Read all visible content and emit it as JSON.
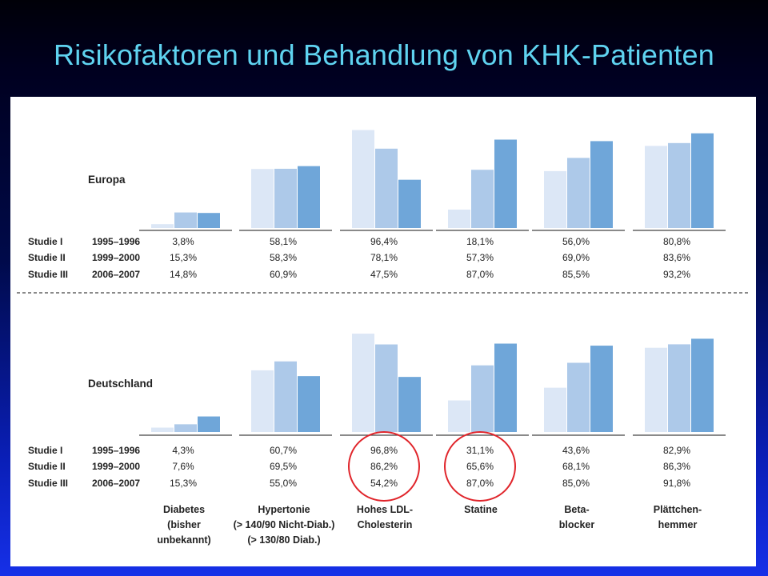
{
  "title": "Risikofaktoren und Behandlung von KHK-Patienten",
  "colors": {
    "study1": "#dce7f6",
    "study2": "#adc9e9",
    "study3": "#6fa6d9",
    "highlight": "#e0252b",
    "title": "#5fd3f0"
  },
  "chart_data": {
    "type": "bar",
    "categories": [
      [
        "Diabetes",
        "(bisher",
        "unbekannt)"
      ],
      [
        "Hypertonie",
        "(> 140/90 Nicht-Diab.)",
        "(> 130/80 Diab.)"
      ],
      [
        "Hohes LDL-",
        "Cholesterin"
      ],
      [
        "Statine"
      ],
      [
        "Beta-",
        "blocker"
      ],
      [
        "Plättchen-",
        "hemmer"
      ]
    ],
    "studies": [
      {
        "name": "Studie I",
        "years": "1995–1996"
      },
      {
        "name": "Studie II",
        "years": "1999–2000"
      },
      {
        "name": "Studie III",
        "years": "2006–2007"
      }
    ],
    "panels": [
      {
        "region": "Europa",
        "values": [
          [
            3.8,
            15.3,
            14.8
          ],
          [
            58.1,
            58.3,
            60.9
          ],
          [
            96.4,
            78.1,
            47.5
          ],
          [
            18.1,
            57.3,
            87.0
          ],
          [
            56.0,
            69.0,
            85.5
          ],
          [
            80.8,
            83.6,
            93.2
          ]
        ],
        "labels": [
          [
            "3,8%",
            "15,3%",
            "14,8%"
          ],
          [
            "58,1%",
            "58,3%",
            "60,9%"
          ],
          [
            "96,4%",
            "78,1%",
            "47,5%"
          ],
          [
            "18,1%",
            "57,3%",
            "87,0%"
          ],
          [
            "56,0%",
            "69,0%",
            "85,5%"
          ],
          [
            "80,8%",
            "83,6%",
            "93,2%"
          ]
        ]
      },
      {
        "region": "Deutschland",
        "values": [
          [
            4.3,
            7.6,
            15.3
          ],
          [
            60.7,
            69.5,
            55.0
          ],
          [
            96.8,
            86.2,
            54.2
          ],
          [
            31.1,
            65.6,
            87.0
          ],
          [
            43.6,
            68.1,
            85.0
          ],
          [
            82.9,
            86.3,
            91.8
          ]
        ],
        "labels": [
          [
            "4,3%",
            "7,6%",
            "15,3%"
          ],
          [
            "60,7%",
            "69,5%",
            "55,0%"
          ],
          [
            "96,8%",
            "86,2%",
            "54,2%"
          ],
          [
            "31,1%",
            "65,6%",
            "87,0%"
          ],
          [
            "43,6%",
            "68,1%",
            "85,0%"
          ],
          [
            "82,9%",
            "86,3%",
            "91,8%"
          ]
        ],
        "highlighted": [
          2,
          3
        ]
      }
    ],
    "ylim": [
      0,
      100
    ]
  }
}
